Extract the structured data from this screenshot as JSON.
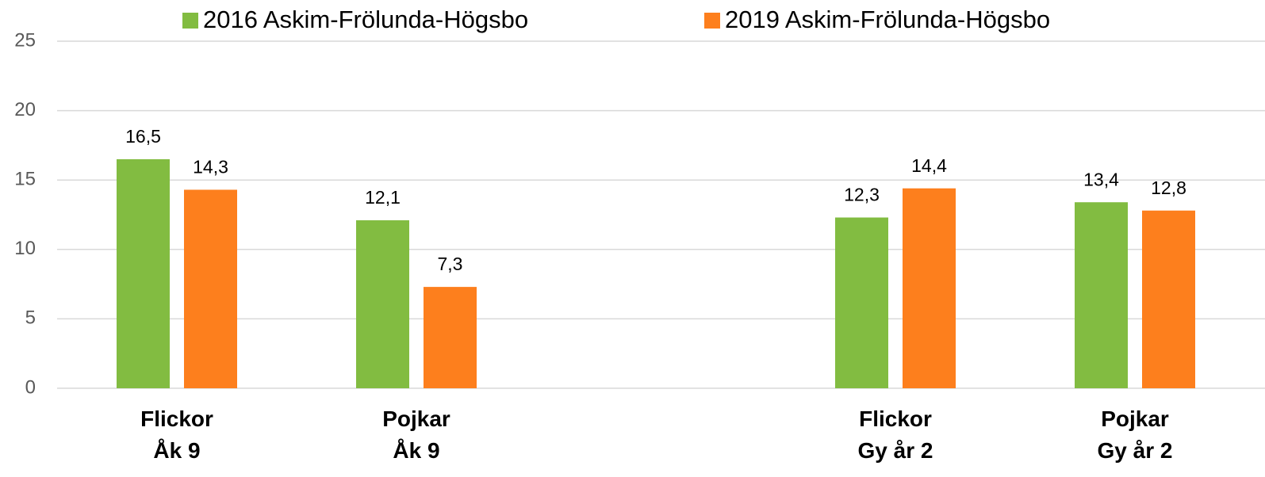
{
  "chart_data": {
    "type": "bar",
    "categories": [
      "Flickor\nÅk 9",
      "Pojkar\nÅk 9",
      null,
      "Flickor\nGy år 2",
      "Pojkar\nGy år 2"
    ],
    "series": [
      {
        "name": "2016 Askim-Frölunda-Högsbo",
        "color": "#82bc41",
        "values": [
          16.5,
          12.1,
          null,
          12.3,
          13.4
        ],
        "value_labels": [
          "16,5",
          "12,1",
          null,
          "12,3",
          "13,4"
        ]
      },
      {
        "name": "2019 Askim-Frölunda-Högsbo",
        "color": "#fd7f1d",
        "values": [
          14.3,
          7.3,
          null,
          14.4,
          12.8
        ],
        "value_labels": [
          "14,3",
          "7,3",
          null,
          "14,4",
          "12,8"
        ]
      }
    ],
    "ylim": [
      0,
      25
    ],
    "yticks": [
      0,
      5,
      10,
      15,
      20,
      25
    ],
    "grid": true,
    "legend": "top"
  }
}
